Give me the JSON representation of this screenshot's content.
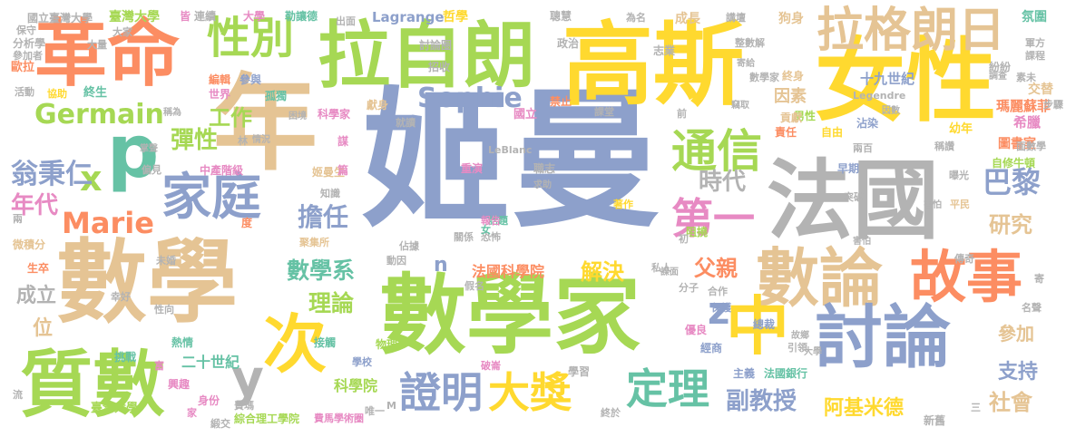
{
  "palette": {
    "blue": "#8da0cb",
    "green": "#a6d854",
    "tan": "#e5c494",
    "yellow": "#ffd92f",
    "orange": "#fc8d62",
    "teal": "#66c2a5",
    "pink": "#e78ac3",
    "grey": "#b3b3b3"
  },
  "words": [
    {
      "text": "姬曼",
      "color": "blue"
    },
    {
      "text": "數學",
      "color": "tan"
    },
    {
      "text": "數學家",
      "color": "green"
    },
    {
      "text": "女性",
      "color": "yellow"
    },
    {
      "text": "法國",
      "color": "grey"
    },
    {
      "text": "年",
      "color": "tan"
    },
    {
      "text": "高斯",
      "color": "yellow"
    },
    {
      "text": "拉自朗",
      "color": "green"
    },
    {
      "text": "革命",
      "color": "orange"
    },
    {
      "text": "質數",
      "color": "green"
    },
    {
      "text": "數論",
      "color": "tan"
    },
    {
      "text": "討論",
      "color": "blue"
    },
    {
      "text": "故事",
      "color": "orange"
    },
    {
      "text": "拉格朗日",
      "color": "tan"
    },
    {
      "text": "次",
      "color": "yellow"
    },
    {
      "text": "p",
      "color": "teal"
    },
    {
      "text": "中",
      "color": "yellow"
    },
    {
      "text": "家庭",
      "color": "blue"
    },
    {
      "text": "性別",
      "color": "green"
    },
    {
      "text": "通信",
      "color": "green"
    },
    {
      "text": "證明",
      "color": "blue"
    },
    {
      "text": "大獎",
      "color": "yellow"
    },
    {
      "text": "定理",
      "color": "teal"
    },
    {
      "text": "第一",
      "color": "pink"
    },
    {
      "text": "Germain",
      "color": "green"
    },
    {
      "text": "Sophie",
      "color": "blue"
    },
    {
      "text": "Marie",
      "color": "orange"
    },
    {
      "text": "y",
      "color": "grey"
    },
    {
      "text": "x",
      "color": "green"
    },
    {
      "text": "z",
      "color": "blue"
    },
    {
      "text": "n",
      "color": "blue"
    },
    {
      "text": "翁秉仁",
      "color": "blue"
    },
    {
      "text": "工作",
      "color": "green"
    },
    {
      "text": "彈性",
      "color": "green"
    },
    {
      "text": "年代",
      "color": "pink"
    },
    {
      "text": "擔任",
      "color": "blue"
    },
    {
      "text": "時代",
      "color": "grey"
    },
    {
      "text": "巴黎",
      "color": "blue"
    },
    {
      "text": "數學系",
      "color": "teal"
    },
    {
      "text": "理論",
      "color": "green"
    },
    {
      "text": "父親",
      "color": "orange"
    },
    {
      "text": "研究",
      "color": "tan"
    },
    {
      "text": "解決",
      "color": "yellow"
    },
    {
      "text": "副教授",
      "color": "blue"
    },
    {
      "text": "阿基米德",
      "color": "yellow"
    },
    {
      "text": "社會",
      "color": "tan"
    },
    {
      "text": "支持",
      "color": "blue"
    },
    {
      "text": "參加",
      "color": "tan"
    },
    {
      "text": "成立",
      "color": "grey"
    },
    {
      "text": "位",
      "color": "tan"
    },
    {
      "text": "二十世紀",
      "color": "teal"
    },
    {
      "text": "科學院",
      "color": "green"
    },
    {
      "text": "法國科學院",
      "color": "orange"
    },
    {
      "text": "因素",
      "color": "tan"
    },
    {
      "text": "十九世紀",
      "color": "blue"
    },
    {
      "text": "瑪麗蘇菲",
      "color": "orange"
    },
    {
      "text": "希臘",
      "color": "pink"
    },
    {
      "text": "交替",
      "color": "tan"
    },
    {
      "text": "圖書室",
      "color": "orange"
    },
    {
      "text": "自修牛頓",
      "color": "green"
    },
    {
      "text": "國立臺灣大學",
      "color": "grey"
    },
    {
      "text": "臺灣大學",
      "color": "green"
    },
    {
      "text": "大學",
      "color": "pink"
    },
    {
      "text": "勒讓德",
      "color": "teal"
    },
    {
      "text": "出面",
      "color": "grey"
    },
    {
      "text": "Lagrange",
      "color": "blue"
    },
    {
      "text": "哲學",
      "color": "yellow"
    },
    {
      "text": "聰慧",
      "color": "grey"
    },
    {
      "text": "為名",
      "color": "grey"
    },
    {
      "text": "成長",
      "color": "tan"
    },
    {
      "text": "狗身",
      "color": "tan"
    },
    {
      "text": "氛圍",
      "color": "teal"
    },
    {
      "text": "終身",
      "color": "tan"
    },
    {
      "text": "男性",
      "color": "green"
    },
    {
      "text": "責任",
      "color": "orange"
    },
    {
      "text": "自由",
      "color": "yellow"
    },
    {
      "text": "幼年",
      "color": "yellow"
    },
    {
      "text": "早期",
      "color": "blue"
    },
    {
      "text": "突破",
      "color": "grey"
    },
    {
      "text": "平民",
      "color": "tan"
    },
    {
      "text": "中產階級",
      "color": "pink"
    },
    {
      "text": "姬曼生",
      "color": "tan"
    },
    {
      "text": "知識",
      "color": "grey"
    },
    {
      "text": "聚集所",
      "color": "tan"
    },
    {
      "text": "關係",
      "color": "grey"
    },
    {
      "text": "恐怖",
      "color": "grey"
    },
    {
      "text": "話題",
      "color": "teal"
    },
    {
      "text": "熱情",
      "color": "teal"
    },
    {
      "text": "接觸",
      "color": "teal"
    },
    {
      "text": "物理",
      "color": "green"
    },
    {
      "text": "學校",
      "color": "blue"
    },
    {
      "text": "興趣",
      "color": "pink"
    },
    {
      "text": "臺灣大學",
      "color": "green"
    },
    {
      "text": "綜合理工學院",
      "color": "green"
    },
    {
      "text": "費馬學術圈",
      "color": "pink"
    },
    {
      "text": "學習",
      "color": "grey"
    },
    {
      "text": "法國銀行",
      "color": "teal"
    },
    {
      "text": "主義",
      "color": "blue"
    },
    {
      "text": "經商",
      "color": "blue"
    },
    {
      "text": "總裁",
      "color": "blue"
    },
    {
      "text": "優良",
      "color": "pink"
    },
    {
      "text": "保護",
      "color": "blue"
    },
    {
      "text": "著作",
      "color": "yellow"
    },
    {
      "text": "分子",
      "color": "grey"
    },
    {
      "text": "私人",
      "color": "grey"
    },
    {
      "text": "課堂",
      "color": "grey"
    },
    {
      "text": "國立",
      "color": "pink"
    },
    {
      "text": "禁止",
      "color": "orange"
    },
    {
      "text": "微積分",
      "color": "tan"
    },
    {
      "text": "生卒",
      "color": "orange"
    },
    {
      "text": "挑戰",
      "color": "teal"
    },
    {
      "text": "幸好",
      "color": "grey"
    },
    {
      "text": "偏見",
      "color": "grey"
    },
    {
      "text": "世界",
      "color": "pink"
    },
    {
      "text": "孤獨",
      "color": "teal"
    },
    {
      "text": "參與",
      "color": "blue"
    },
    {
      "text": "編輯",
      "color": "orange"
    },
    {
      "text": "科學家",
      "color": "pink"
    },
    {
      "text": "終生",
      "color": "teal"
    },
    {
      "text": "歐拉",
      "color": "orange"
    },
    {
      "text": "分析學",
      "color": "grey"
    },
    {
      "text": "參加者",
      "color": "grey"
    },
    {
      "text": "保守",
      "color": "grey"
    },
    {
      "text": "協助",
      "color": "yellow"
    },
    {
      "text": "活動",
      "color": "grey"
    },
    {
      "text": "討論圈",
      "color": "grey"
    },
    {
      "text": "招收",
      "color": "grey"
    },
    {
      "text": "政治",
      "color": "grey"
    },
    {
      "text": "整數解",
      "color": "grey"
    },
    {
      "text": "志業",
      "color": "grey"
    },
    {
      "text": "講壇",
      "color": "grey"
    },
    {
      "text": "軍方",
      "color": "grey"
    },
    {
      "text": "課程",
      "color": "grey"
    },
    {
      "text": "紛紛",
      "color": "grey"
    },
    {
      "text": "貢獻",
      "color": "tan"
    },
    {
      "text": "沾染",
      "color": "blue"
    },
    {
      "text": "兩百",
      "color": "grey"
    },
    {
      "text": "稱讚",
      "color": "grey"
    },
    {
      "text": "面數學",
      "color": "grey"
    },
    {
      "text": "曝光",
      "color": "grey"
    },
    {
      "text": "阻撓",
      "color": "green"
    },
    {
      "text": "重演",
      "color": "pink"
    },
    {
      "text": "報告",
      "color": "pink"
    },
    {
      "text": "職志",
      "color": "grey"
    },
    {
      "text": "LeBlanc",
      "color": "grey"
    },
    {
      "text": "就讀",
      "color": "grey"
    },
    {
      "text": "獻身",
      "color": "tan"
    },
    {
      "text": "謀",
      "color": "pink"
    },
    {
      "text": "度",
      "color": "orange"
    },
    {
      "text": "篇",
      "color": "pink"
    },
    {
      "text": "佔據",
      "color": "grey"
    },
    {
      "text": "女",
      "color": "teal"
    },
    {
      "text": "動因",
      "color": "grey"
    },
    {
      "text": "未婚",
      "color": "grey"
    },
    {
      "text": "性向",
      "color": "grey"
    },
    {
      "text": "假名",
      "color": "grey"
    },
    {
      "text": "唯一",
      "color": "grey"
    },
    {
      "text": "破崙",
      "color": "pink"
    },
    {
      "text": "富",
      "color": "pink"
    },
    {
      "text": "身份",
      "color": "pink"
    },
    {
      "text": "家",
      "color": "pink"
    },
    {
      "text": "緞交",
      "color": "grey"
    },
    {
      "text": "M",
      "color": "grey"
    },
    {
      "text": "終於",
      "color": "grey"
    },
    {
      "text": "新舊",
      "color": "grey"
    },
    {
      "text": "名聲",
      "color": "grey"
    },
    {
      "text": "引領",
      "color": "grey"
    },
    {
      "text": "故鄉",
      "color": "grey"
    },
    {
      "text": "大學",
      "color": "grey"
    },
    {
      "text": "傳奇",
      "color": "grey"
    },
    {
      "text": "Legendre",
      "color": "grey"
    },
    {
      "text": "步驟",
      "color": "grey"
    },
    {
      "text": "素未",
      "color": "grey"
    },
    {
      "text": "費瑪",
      "color": "grey"
    },
    {
      "text": "大家",
      "color": "grey"
    },
    {
      "text": "皆",
      "color": "pink"
    },
    {
      "text": "連續",
      "color": "grey"
    },
    {
      "text": "大量",
      "color": "grey"
    },
    {
      "text": "數學家",
      "color": "grey"
    },
    {
      "text": "合作",
      "color": "grey"
    },
    {
      "text": "三",
      "color": "grey"
    },
    {
      "text": "流",
      "color": "grey"
    },
    {
      "text": "兩",
      "color": "grey"
    },
    {
      "text": "初",
      "color": "grey"
    },
    {
      "text": "寄",
      "color": "grey"
    },
    {
      "text": "前",
      "color": "grey"
    },
    {
      "text": "林",
      "color": "grey"
    },
    {
      "text": "困境",
      "color": "grey"
    },
    {
      "text": "求助",
      "color": "grey"
    },
    {
      "text": "害怕",
      "color": "grey"
    },
    {
      "text": "害怕",
      "color": "grey"
    },
    {
      "text": "謀面",
      "color": "grey"
    },
    {
      "text": "情況",
      "color": "grey"
    },
    {
      "text": "掌聲",
      "color": "grey"
    },
    {
      "text": "稱為",
      "color": "grey"
    },
    {
      "text": "因數",
      "color": "grey"
    },
    {
      "text": "寄給",
      "color": "grey"
    },
    {
      "text": "竊取",
      "color": "grey"
    },
    {
      "text": "調查",
      "color": "grey"
    }
  ]
}
